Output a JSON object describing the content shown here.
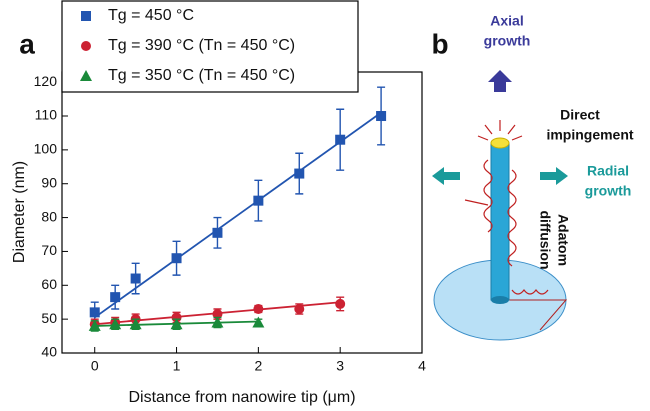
{
  "chart_data": {
    "type": "scatter",
    "panel_label": "a",
    "xlabel": "Distance from nanowire tip (μm)",
    "ylabel": "Diameter (nm)",
    "xlim": [
      -0.4,
      4
    ],
    "ylim": [
      40,
      123
    ],
    "xticks": [
      0,
      1,
      2,
      3,
      4
    ],
    "yticks": [
      40,
      50,
      60,
      70,
      80,
      90,
      100,
      110,
      120
    ],
    "legend": "upper left",
    "series": [
      {
        "name": "Tg = 450 °C",
        "color": "#2255b0",
        "marker": "square",
        "x": [
          0,
          0.25,
          0.5,
          1,
          1.5,
          2,
          2.5,
          3,
          3.5
        ],
        "values": [
          52,
          56.5,
          62,
          68,
          75.5,
          85,
          93,
          103,
          110
        ],
        "errors": [
          3,
          3.5,
          4.5,
          5,
          4.5,
          6,
          6,
          9,
          8.5
        ],
        "fit": {
          "x": [
            0,
            3.5
          ],
          "values": [
            50.5,
            111
          ]
        }
      },
      {
        "name": "Tg = 390 °C (Tn = 450 °C)",
        "color": "#cc2233",
        "marker": "circle",
        "x": [
          0,
          0.25,
          0.5,
          1,
          1.5,
          2,
          2.5,
          3
        ],
        "values": [
          48.5,
          49,
          50,
          50.5,
          51.5,
          53,
          53,
          54.5
        ],
        "errors": [
          1.5,
          1.5,
          1.5,
          1.5,
          1.5,
          1,
          1.5,
          2
        ],
        "fit": {
          "x": [
            0,
            3
          ],
          "values": [
            48.5,
            55
          ]
        }
      },
      {
        "name": "Tg = 350 °C (Tn = 450 °C)",
        "color": "#1a8a3a",
        "marker": "triangle",
        "x": [
          0,
          0.25,
          0.5,
          1,
          1.5,
          2
        ],
        "values": [
          48,
          48.5,
          48.5,
          48.5,
          49,
          49
        ],
        "errors": [
          1.5,
          1.5,
          1.5,
          1.5,
          1.5,
          1
        ],
        "fit": {
          "x": [
            0,
            2
          ],
          "values": [
            48,
            49.3
          ]
        }
      }
    ]
  },
  "diagram": {
    "panel_label": "b",
    "axial": [
      "Axial",
      "growth"
    ],
    "impingement": [
      "Direct",
      "impingement"
    ],
    "radial": [
      "Radial",
      "growth"
    ],
    "diffusion": [
      "Adatom",
      "diffusion"
    ]
  }
}
